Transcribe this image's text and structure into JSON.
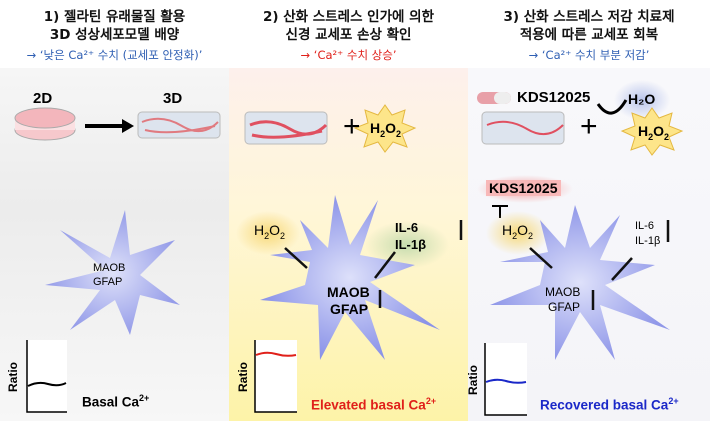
{
  "panels": [
    {
      "title_line1": "1) 젤라틴 유래물질 활용",
      "title_line2": "3D 성상세포모델 배양",
      "result": "→ ‘낮은 Ca²⁺ 수치 (교세포 안정화)’",
      "label_2d": "2D",
      "label_3d": "3D",
      "cell_markers": "MAOB\nGFAP",
      "cell_marker1": "MAOB",
      "cell_marker2": "GFAP",
      "ratio_label": "Ratio",
      "calcium_label": "Basal Ca",
      "calcium_sup": "2+"
    },
    {
      "title_line1": "2) 산화 스트레스 인가에 의한",
      "title_line2": "신경 교세포 손상 확인",
      "result": "→ ‘Ca²⁺ 수치 상승’",
      "plus": "+",
      "h2o2": "H",
      "h2o2_sub": "2",
      "h2o2_o": "O",
      "cell_marker1": "MAOB",
      "cell_marker2": "GFAP",
      "cytokine1": "IL-6",
      "cytokine2": "IL-1β",
      "ratio_label": "Ratio",
      "calcium_label": "Elevated basal Ca",
      "calcium_sup": "2+"
    },
    {
      "title_line1": "3) 산화 스트레스 저감 치료제",
      "title_line2": "적용에 따른 교세포 회복",
      "result": "→ ‘Ca²⁺ 수치 부분 저감’",
      "drug": "KDS12025",
      "h2o": "H₂O",
      "plus": "+",
      "cell_marker1": "MAOB",
      "cell_marker2": "GFAP",
      "cytokine1": "IL-6",
      "cytokine2": "IL-1β",
      "ratio_label": "Ratio",
      "calcium_label": "Recovered basal Ca",
      "calcium_sup": "2+"
    }
  ],
  "colors": {
    "blue_text": "#2f5fb3",
    "red_text": "#e0201a",
    "cell": "#8b93e8",
    "recovered": "#1a28c8"
  }
}
